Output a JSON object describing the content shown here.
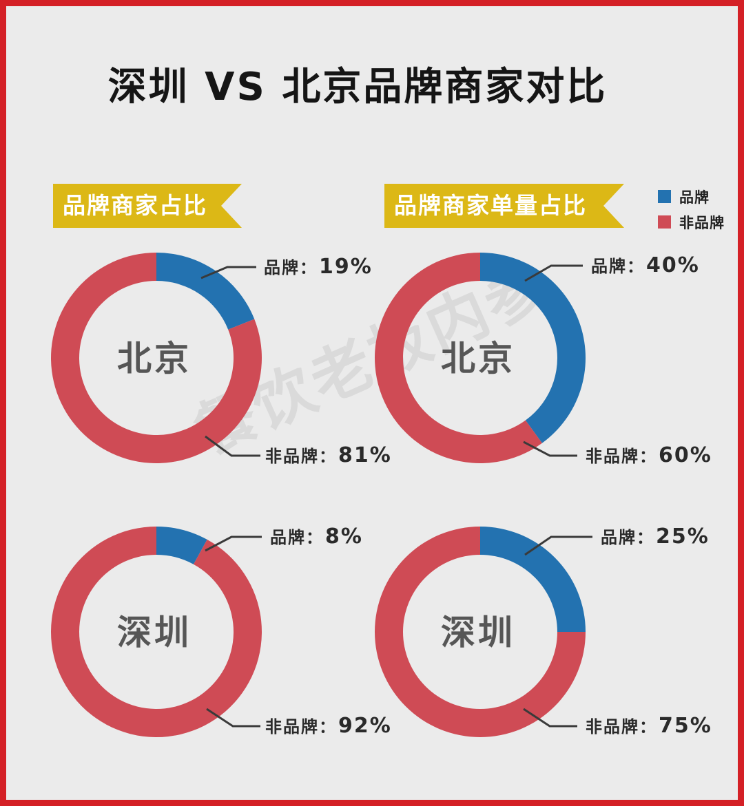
{
  "title": "深圳 VS 北京品牌商家对比",
  "watermark": "餐饮老板内参",
  "colors": {
    "brand": "#2372b0",
    "non_brand": "#cf4b55",
    "banner": "#dcb816",
    "frame": "#d42026"
  },
  "legend": [
    {
      "label": "品牌",
      "color": "#2372b0"
    },
    {
      "label": "非品牌",
      "color": "#cf4b55"
    }
  ],
  "sections": [
    {
      "label": "品牌商家占比"
    },
    {
      "label": "品牌商家单量占比"
    }
  ],
  "chart_data": [
    {
      "type": "pie",
      "title": "品牌商家占比",
      "center_label": "北京",
      "slices": [
        {
          "label": "品牌",
          "value": 19,
          "display": "19%"
        },
        {
          "label": "非品牌",
          "value": 81,
          "display": "81%"
        }
      ]
    },
    {
      "type": "pie",
      "title": "品牌商家单量占比",
      "center_label": "北京",
      "slices": [
        {
          "label": "品牌",
          "value": 40,
          "display": "40%"
        },
        {
          "label": "非品牌",
          "value": 60,
          "display": "60%"
        }
      ]
    },
    {
      "type": "pie",
      "title": "品牌商家占比",
      "center_label": "深圳",
      "slices": [
        {
          "label": "品牌",
          "value": 8,
          "display": "8%"
        },
        {
          "label": "非品牌",
          "value": 92,
          "display": "92%"
        }
      ]
    },
    {
      "type": "pie",
      "title": "品牌商家单量占比",
      "center_label": "深圳",
      "slices": [
        {
          "label": "品牌",
          "value": 25,
          "display": "25%"
        },
        {
          "label": "非品牌",
          "value": 75,
          "display": "75%"
        }
      ]
    }
  ]
}
